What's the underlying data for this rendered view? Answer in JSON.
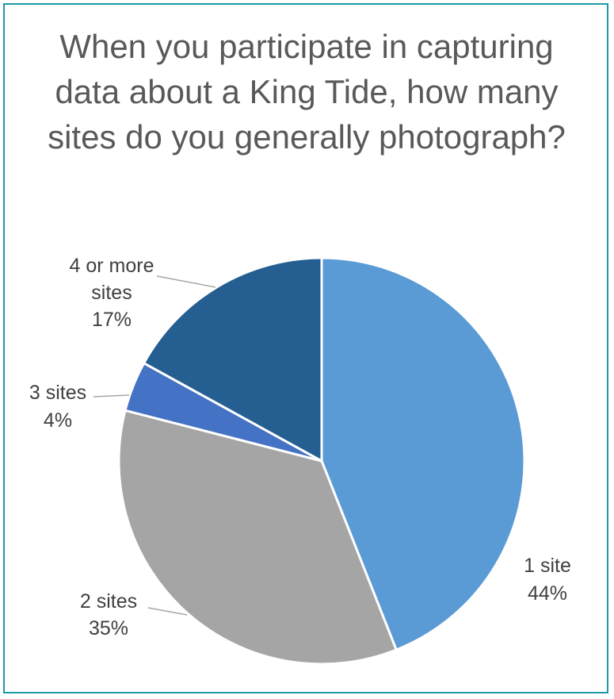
{
  "chart_data": {
    "type": "pie",
    "title": "When you participate in capturing data about a King Tide, how many sites do you generally photograph?",
    "slices": [
      {
        "label": "1 site",
        "value": 44,
        "value_label": "44%",
        "color": "#5b9bd5"
      },
      {
        "label": "2 sites",
        "value": 35,
        "value_label": "35%",
        "color": "#a5a5a5"
      },
      {
        "label": "3 sites",
        "value": 4,
        "value_label": "4%",
        "color": "#4472c4"
      },
      {
        "label": "4 or more sites",
        "value": 17,
        "value_label": "17%",
        "color": "#255e91"
      }
    ]
  },
  "colors": {
    "border": "#1b9aa6",
    "title": "#595959",
    "label": "#404040"
  }
}
